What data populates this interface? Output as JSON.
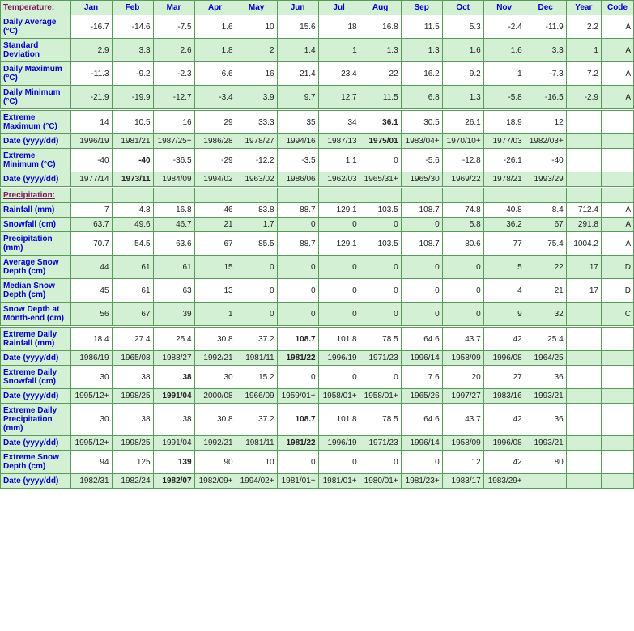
{
  "columns": [
    "Jan",
    "Feb",
    "Mar",
    "Apr",
    "May",
    "Jun",
    "Jul",
    "Aug",
    "Sep",
    "Oct",
    "Nov",
    "Dec",
    "Year",
    "Code"
  ],
  "sections": [
    {
      "title": "Temperature:",
      "rows": [
        {
          "label": "Daily Average (°C)",
          "shade": "white",
          "cells": [
            "-16.7",
            "-14.6",
            "-7.5",
            "1.6",
            "10",
            "15.6",
            "18",
            "16.8",
            "11.5",
            "5.3",
            "-2.4",
            "-11.9",
            "2.2",
            "A"
          ]
        },
        {
          "label": "Standard Deviation",
          "shade": "green",
          "cells": [
            "2.9",
            "3.3",
            "2.6",
            "1.8",
            "2",
            "1.4",
            "1",
            "1.3",
            "1.3",
            "1.6",
            "1.6",
            "3.3",
            "1",
            "A"
          ]
        },
        {
          "label": "Daily Maximum (°C)",
          "shade": "white",
          "cells": [
            "-11.3",
            "-9.2",
            "-2.3",
            "6.6",
            "16",
            "21.4",
            "23.4",
            "22",
            "16.2",
            "9.2",
            "1",
            "-7.3",
            "7.2",
            "A"
          ]
        },
        {
          "label": "Daily Minimum (°C)",
          "shade": "green",
          "cells": [
            "-21.9",
            "-19.9",
            "-12.7",
            "-3.4",
            "3.9",
            "9.7",
            "12.7",
            "11.5",
            "6.8",
            "1.3",
            "-5.8",
            "-16.5",
            "-2.9",
            "A"
          ]
        },
        {
          "label": "Extreme Maximum (°C)",
          "shade": "white",
          "divider": true,
          "cells": [
            "14",
            "10.5",
            "16",
            "29",
            "33.3",
            "35",
            "34",
            "36.1",
            "30.5",
            "26.1",
            "18.9",
            "12",
            "",
            ""
          ],
          "bold": [
            7
          ]
        },
        {
          "label": "Date (yyyy/dd)",
          "shade": "green",
          "cells": [
            "1996/19",
            "1981/21",
            "1987/25+",
            "1986/28",
            "1978/27",
            "1994/16",
            "1987/13",
            "1975/01",
            "1983/04+",
            "1970/10+",
            "1977/03",
            "1982/03+",
            "",
            ""
          ],
          "bold": [
            7
          ]
        },
        {
          "label": "Extreme Minimum (°C)",
          "shade": "white",
          "cells": [
            "-40",
            "-40",
            "-36.5",
            "-29",
            "-12.2",
            "-3.5",
            "1.1",
            "0",
            "-5.6",
            "-12.8",
            "-26.1",
            "-40",
            "",
            ""
          ],
          "bold": [
            1
          ]
        },
        {
          "label": "Date (yyyy/dd)",
          "shade": "green",
          "cells": [
            "1977/14",
            "1973/11",
            "1984/09",
            "1994/02",
            "1963/02",
            "1986/06",
            "1962/03",
            "1965/31+",
            "1965/30",
            "1969/22",
            "1978/21",
            "1993/29",
            "",
            ""
          ],
          "bold": [
            1
          ]
        }
      ]
    },
    {
      "title": "Precipitation:",
      "rows": [
        {
          "label": "Rainfall (mm)",
          "shade": "white",
          "cells": [
            "7",
            "4.8",
            "16.8",
            "46",
            "83.8",
            "88.7",
            "129.1",
            "103.5",
            "108.7",
            "74.8",
            "40.8",
            "8.4",
            "712.4",
            "A"
          ]
        },
        {
          "label": "Snowfall (cm)",
          "shade": "green",
          "cells": [
            "63.7",
            "49.6",
            "46.7",
            "21",
            "1.7",
            "0",
            "0",
            "0",
            "0",
            "5.8",
            "36.2",
            "67",
            "291.8",
            "A"
          ]
        },
        {
          "label": "Precipitation (mm)",
          "shade": "white",
          "cells": [
            "70.7",
            "54.5",
            "63.6",
            "67",
            "85.5",
            "88.7",
            "129.1",
            "103.5",
            "108.7",
            "80.6",
            "77",
            "75.4",
            "1004.2",
            "A"
          ]
        },
        {
          "label": "Average Snow Depth (cm)",
          "shade": "green",
          "cells": [
            "44",
            "61",
            "61",
            "15",
            "0",
            "0",
            "0",
            "0",
            "0",
            "0",
            "5",
            "22",
            "17",
            "D"
          ]
        },
        {
          "label": "Median Snow Depth (cm)",
          "shade": "white",
          "cells": [
            "45",
            "61",
            "63",
            "13",
            "0",
            "0",
            "0",
            "0",
            "0",
            "0",
            "4",
            "21",
            "17",
            "D"
          ]
        },
        {
          "label": "Snow Depth at Month-end (cm)",
          "shade": "green",
          "cells": [
            "56",
            "67",
            "39",
            "1",
            "0",
            "0",
            "0",
            "0",
            "0",
            "0",
            "9",
            "32",
            "",
            "C"
          ]
        },
        {
          "label": "Extreme Daily Rainfall (mm)",
          "shade": "white",
          "divider": true,
          "cells": [
            "18.4",
            "27.4",
            "25.4",
            "30.8",
            "37.2",
            "108.7",
            "101.8",
            "78.5",
            "64.6",
            "43.7",
            "42",
            "25.4",
            "",
            ""
          ],
          "bold": [
            5
          ]
        },
        {
          "label": "Date (yyyy/dd)",
          "shade": "green",
          "cells": [
            "1986/19",
            "1965/08",
            "1988/27",
            "1992/21",
            "1981/11",
            "1981/22",
            "1996/19",
            "1971/23",
            "1996/14",
            "1958/09",
            "1996/08",
            "1964/25",
            "",
            ""
          ],
          "bold": [
            5
          ]
        },
        {
          "label": "Extreme Daily Snowfall (cm)",
          "shade": "white",
          "cells": [
            "30",
            "38",
            "38",
            "30",
            "15.2",
            "0",
            "0",
            "0",
            "7.6",
            "20",
            "27",
            "36",
            "",
            ""
          ],
          "bold": [
            2
          ]
        },
        {
          "label": "Date (yyyy/dd)",
          "shade": "green",
          "cells": [
            "1995/12+",
            "1998/25",
            "1991/04",
            "2000/08",
            "1966/09",
            "1959/01+",
            "1958/01+",
            "1958/01+",
            "1965/26",
            "1997/27",
            "1983/16",
            "1993/21",
            "",
            ""
          ],
          "bold": [
            2
          ]
        },
        {
          "label": "Extreme Daily Precipitation (mm)",
          "shade": "white",
          "cells": [
            "30",
            "38",
            "38",
            "30.8",
            "37.2",
            "108.7",
            "101.8",
            "78.5",
            "64.6",
            "43.7",
            "42",
            "36",
            "",
            ""
          ],
          "bold": [
            5
          ]
        },
        {
          "label": "Date (yyyy/dd)",
          "shade": "green",
          "cells": [
            "1995/12+",
            "1998/25",
            "1991/04",
            "1992/21",
            "1981/11",
            "1981/22",
            "1996/19",
            "1971/23",
            "1996/14",
            "1958/09",
            "1996/08",
            "1993/21",
            "",
            ""
          ],
          "bold": [
            5
          ]
        },
        {
          "label": "Extreme Snow Depth (cm)",
          "shade": "white",
          "cells": [
            "94",
            "125",
            "139",
            "90",
            "10",
            "0",
            "0",
            "0",
            "0",
            "12",
            "42",
            "80",
            "",
            ""
          ],
          "bold": [
            2
          ]
        },
        {
          "label": "Date (yyyy/dd)",
          "shade": "green",
          "cells": [
            "1982/31",
            "1982/24",
            "1982/07",
            "1982/09+",
            "1994/02+",
            "1981/01+",
            "1981/01+",
            "1980/01+",
            "1981/23+",
            "1983/17",
            "1983/29+",
            "",
            "",
            ""
          ],
          "bold": [
            2
          ]
        }
      ]
    }
  ]
}
